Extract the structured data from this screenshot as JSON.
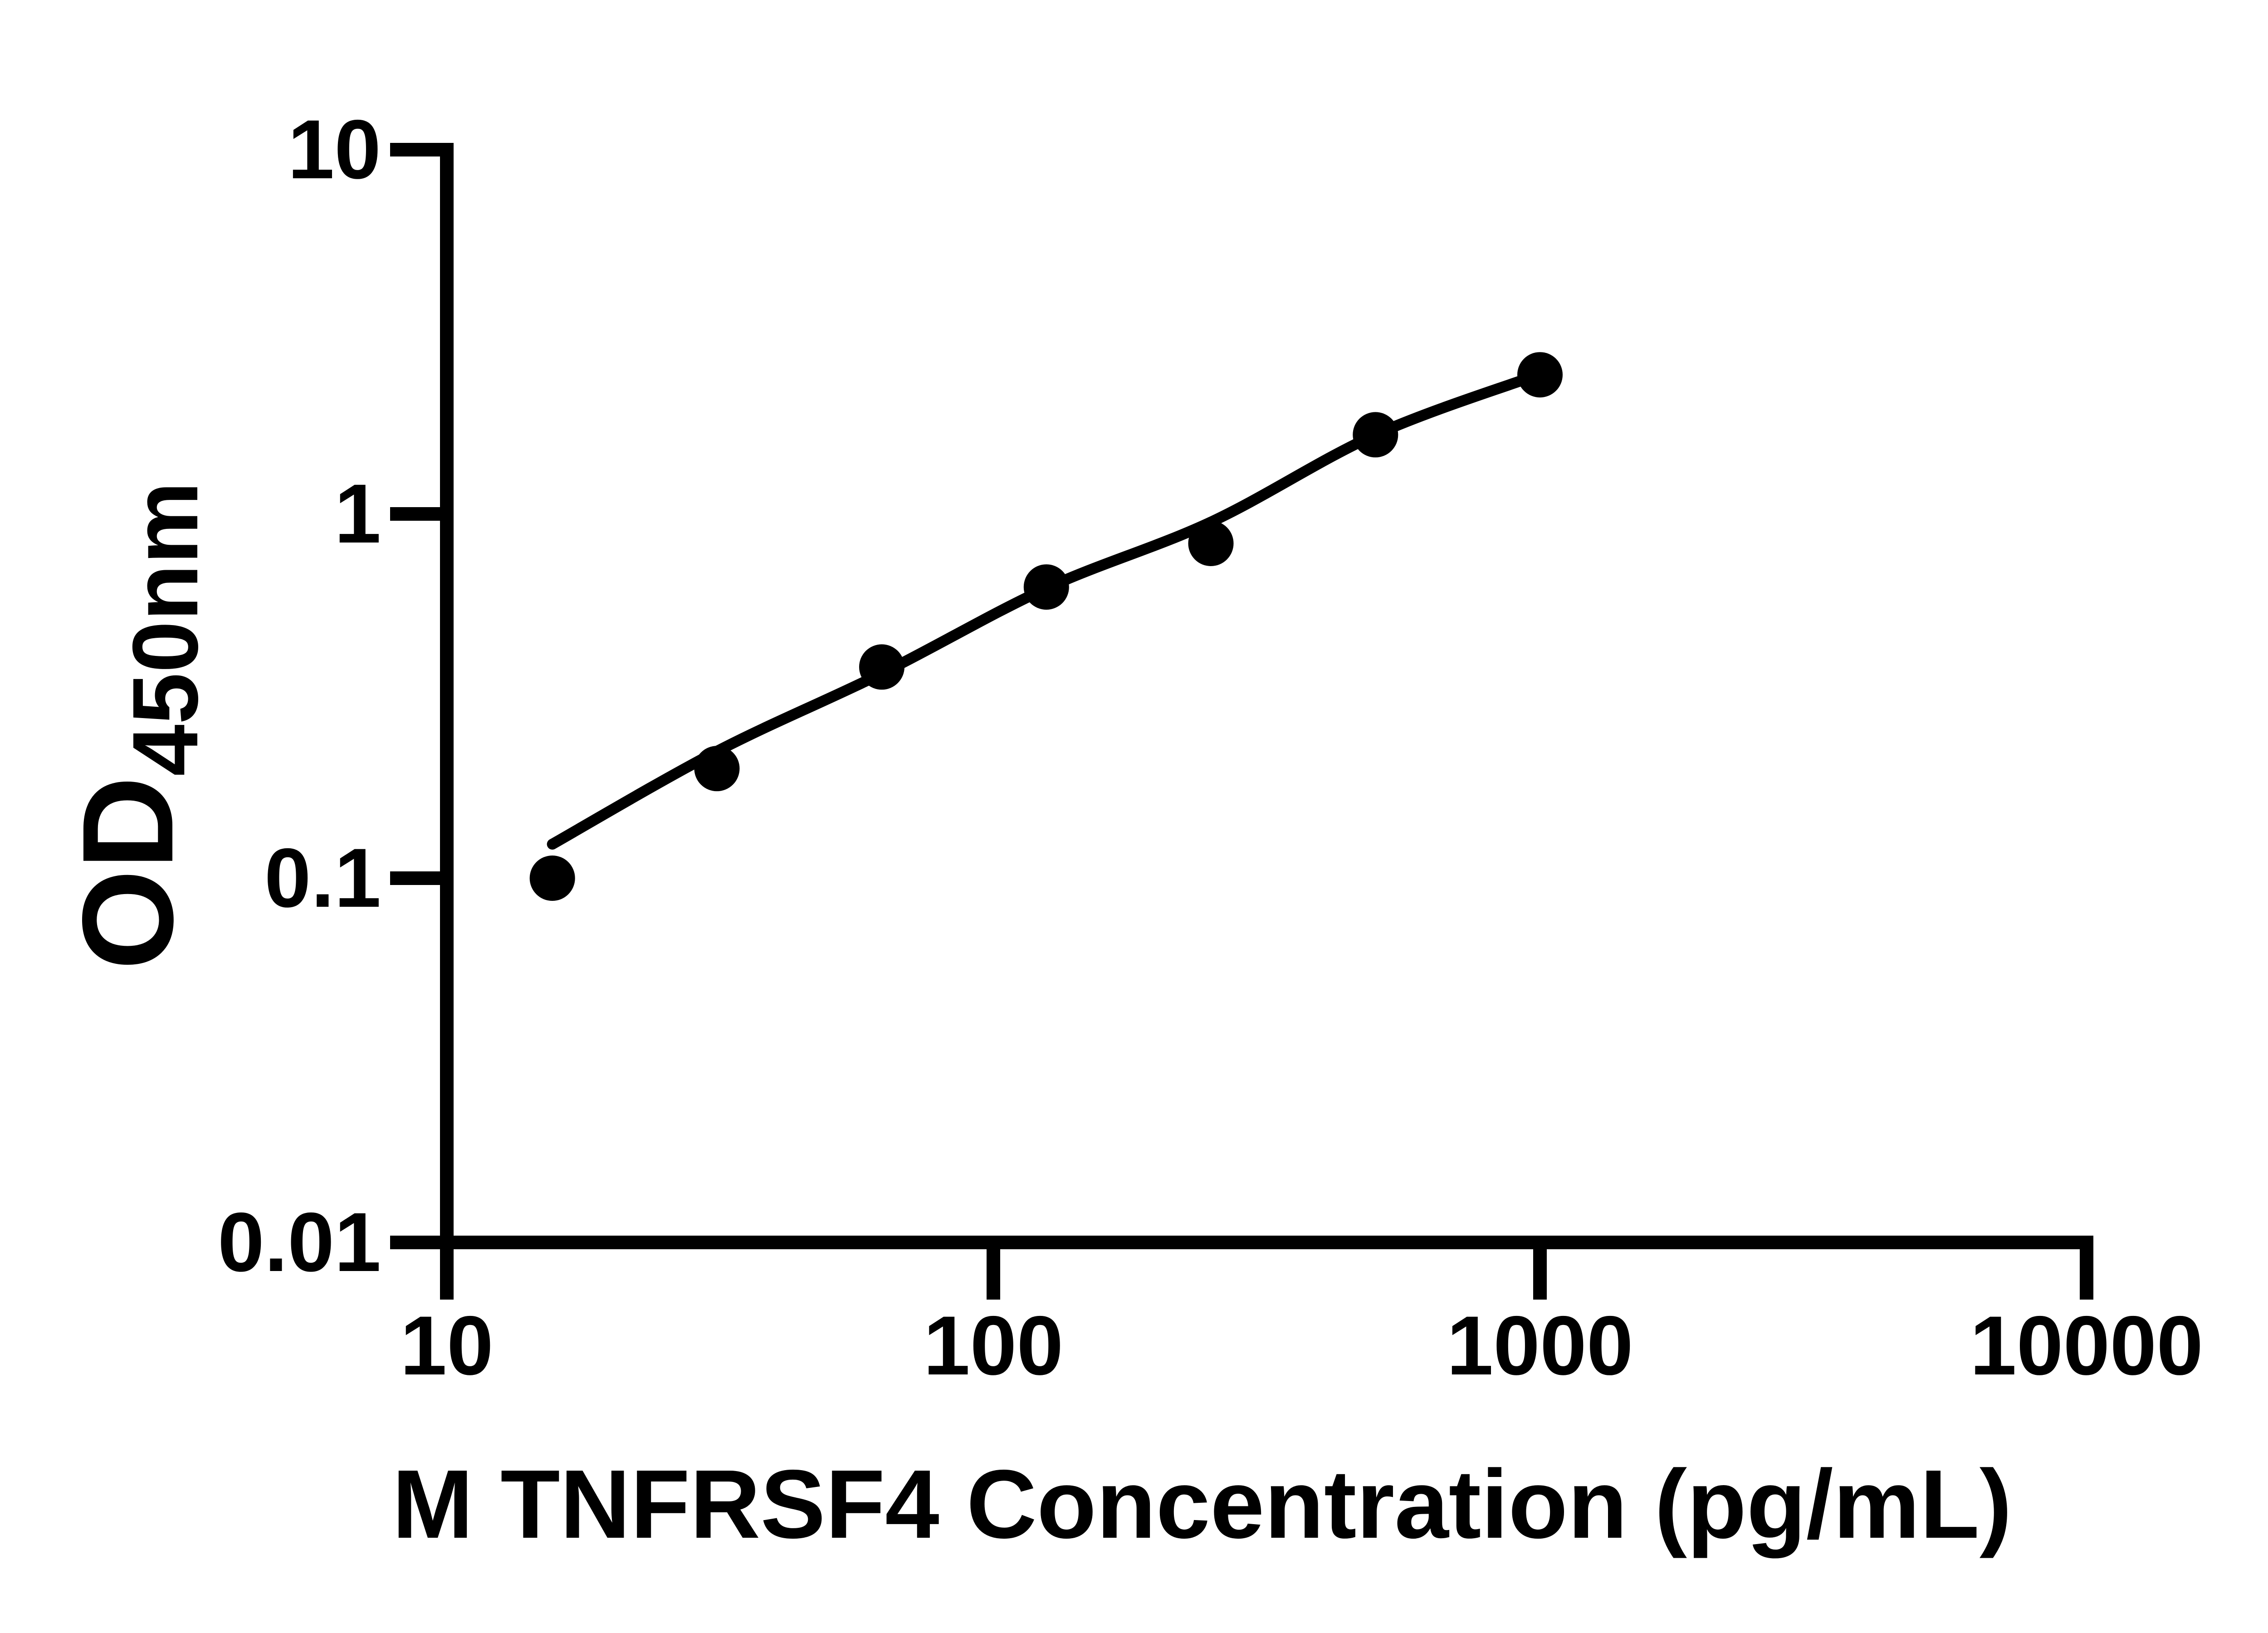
{
  "figure": {
    "background_color": "#ffffff",
    "ink_color": "#000000",
    "title": ""
  },
  "chart_data": {
    "type": "scatter",
    "subtype": "ELISA standard curve (scatter with fitted trend line)",
    "title": "",
    "xlabel": "M TNFRSF4 Concentration (pg/mL)",
    "ylabel": "OD450nm",
    "ylabel_base": "OD",
    "ylabel_subscript": "450nm",
    "x_scale": "log10",
    "y_scale": "log10",
    "xlim": [
      10,
      10000
    ],
    "ylim": [
      0.01,
      10
    ],
    "grid": false,
    "legend": null,
    "x_ticks": [
      {
        "value": 10,
        "label": "10"
      },
      {
        "value": 100,
        "label": "100"
      },
      {
        "value": 1000,
        "label": "1000"
      },
      {
        "value": 10000,
        "label": "10000"
      }
    ],
    "y_ticks": [
      {
        "value": 10,
        "label": "10"
      },
      {
        "value": 1,
        "label": "1"
      },
      {
        "value": 0.1,
        "label": "0.1"
      },
      {
        "value": 0.01,
        "label": "0.01"
      }
    ],
    "points": [
      {
        "x": 15.6,
        "od": 0.1
      },
      {
        "x": 31.2,
        "od": 0.2
      },
      {
        "x": 62.5,
        "od": 0.38
      },
      {
        "x": 125,
        "od": 0.63
      },
      {
        "x": 250,
        "od": 0.83
      },
      {
        "x": 500,
        "od": 1.65
      },
      {
        "x": 1000,
        "od": 2.41
      }
    ],
    "trend_line": [
      {
        "x": 15.6,
        "od": 0.124
      },
      {
        "x": 31.2,
        "od": 0.223
      },
      {
        "x": 62.5,
        "od": 0.365
      },
      {
        "x": 125,
        "od": 0.625
      },
      {
        "x": 250,
        "od": 0.95
      },
      {
        "x": 500,
        "od": 1.65
      },
      {
        "x": 1000,
        "od": 2.42
      }
    ],
    "marker": {
      "shape": "circle",
      "radius_px": 50,
      "color": "#000000"
    }
  }
}
